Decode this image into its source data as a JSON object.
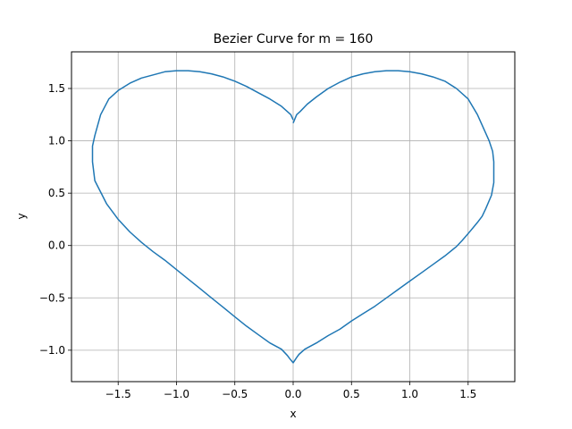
{
  "chart_data": {
    "type": "line",
    "title": "Bezier Curve for m = 160",
    "xlabel": "x",
    "ylabel": "y",
    "xlim": [
      -1.9,
      1.9
    ],
    "ylim": [
      -1.3,
      1.85
    ],
    "grid": true,
    "x_ticks": [
      {
        "value": -1.5,
        "label": "−1.5"
      },
      {
        "value": -1.0,
        "label": "−1.0"
      },
      {
        "value": -0.5,
        "label": "−0.5"
      },
      {
        "value": 0.0,
        "label": "0.0"
      },
      {
        "value": 0.5,
        "label": "0.5"
      },
      {
        "value": 1.0,
        "label": "1.0"
      },
      {
        "value": 1.5,
        "label": "1.5"
      }
    ],
    "y_ticks": [
      {
        "value": -1.0,
        "label": "−1.0"
      },
      {
        "value": -0.5,
        "label": "−0.5"
      },
      {
        "value": 0.0,
        "label": "0.0"
      },
      {
        "value": 0.5,
        "label": "0.5"
      },
      {
        "value": 1.0,
        "label": "1.0"
      },
      {
        "value": 1.5,
        "label": "1.5"
      }
    ],
    "series": [
      {
        "color": "#1f77b4",
        "x": [
          0.0,
          0.03,
          0.06,
          0.12,
          0.2,
          0.3,
          0.4,
          0.5,
          0.6,
          0.7,
          0.8,
          0.9,
          1.0,
          1.1,
          1.2,
          1.3,
          1.4,
          1.5,
          1.58,
          1.64,
          1.68,
          1.71,
          1.72,
          1.72,
          1.7,
          1.65,
          1.62,
          1.58,
          1.52,
          1.45,
          1.4,
          1.3,
          1.2,
          1.1,
          1.0,
          0.9,
          0.8,
          0.7,
          0.6,
          0.5,
          0.4,
          0.3,
          0.2,
          0.1,
          0.05,
          0.03,
          0.0,
          -0.03,
          -0.05,
          -0.1,
          -0.2,
          -0.3,
          -0.4,
          -0.5,
          -0.6,
          -0.7,
          -0.8,
          -0.9,
          -1.0,
          -1.1,
          -1.2,
          -1.3,
          -1.4,
          -1.5,
          -1.6,
          -1.7,
          -1.72,
          -1.72,
          -1.7,
          -1.65,
          -1.58,
          -1.5,
          -1.4,
          -1.3,
          -1.2,
          -1.1,
          -1.0,
          -0.9,
          -0.8,
          -0.7,
          -0.6,
          -0.5,
          -0.4,
          -0.3,
          -0.2,
          -0.1,
          -0.05,
          -0.02,
          0.0
        ],
        "y": [
          1.17,
          1.25,
          1.28,
          1.35,
          1.42,
          1.5,
          1.56,
          1.61,
          1.64,
          1.66,
          1.67,
          1.67,
          1.66,
          1.64,
          1.61,
          1.57,
          1.5,
          1.4,
          1.25,
          1.1,
          1.0,
          0.9,
          0.8,
          0.6,
          0.48,
          0.35,
          0.28,
          0.22,
          0.14,
          0.05,
          -0.01,
          -0.1,
          -0.18,
          -0.26,
          -0.34,
          -0.42,
          -0.5,
          -0.58,
          -0.65,
          -0.72,
          -0.8,
          -0.86,
          -0.93,
          -0.99,
          -1.04,
          -1.07,
          -1.12,
          -1.08,
          -1.05,
          -0.99,
          -0.93,
          -0.85,
          -0.77,
          -0.68,
          -0.59,
          -0.5,
          -0.41,
          -0.32,
          -0.23,
          -0.14,
          -0.06,
          0.03,
          0.13,
          0.25,
          0.4,
          0.62,
          0.8,
          0.95,
          1.05,
          1.25,
          1.4,
          1.48,
          1.55,
          1.6,
          1.63,
          1.66,
          1.67,
          1.67,
          1.66,
          1.64,
          1.61,
          1.57,
          1.52,
          1.46,
          1.4,
          1.33,
          1.28,
          1.25,
          1.2
        ]
      }
    ]
  }
}
